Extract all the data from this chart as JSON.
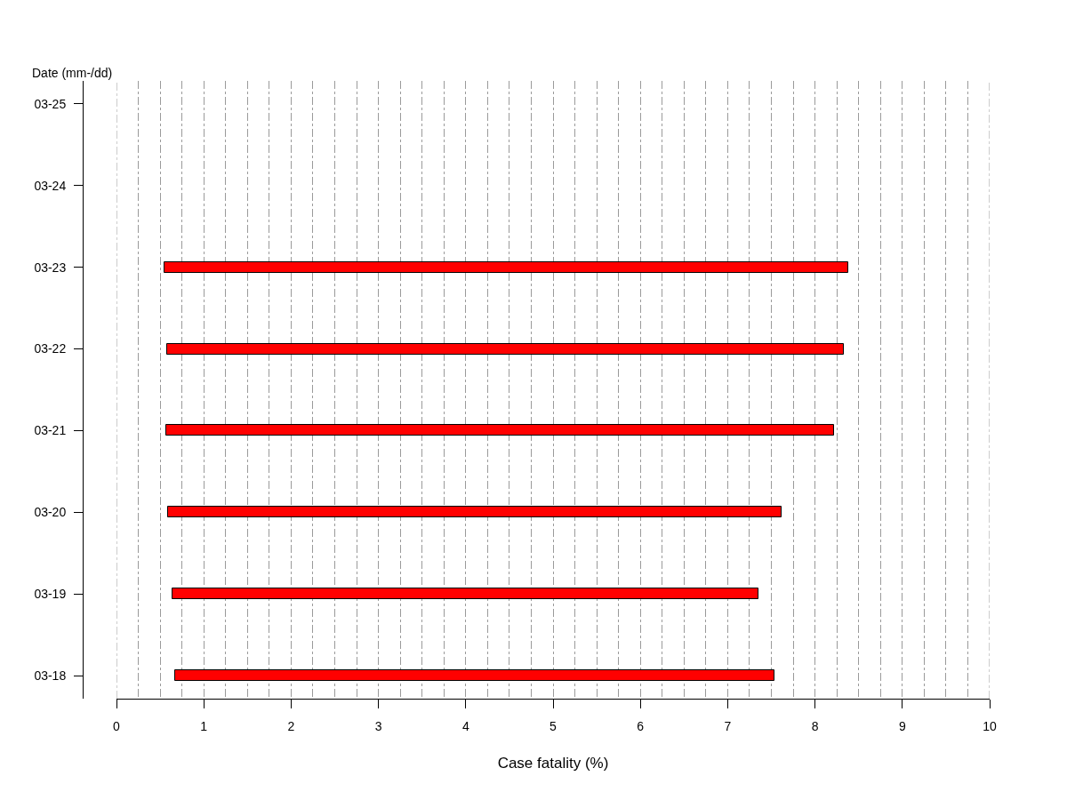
{
  "chart_data": {
    "type": "bar",
    "orientation": "horizontal",
    "categories": [
      "03-25",
      "03-24",
      "03-23",
      "03-22",
      "03-21",
      "03-20",
      "03-19",
      "03-18"
    ],
    "base": [
      null,
      null,
      0.55,
      0.58,
      0.57,
      0.59,
      0.64,
      0.67
    ],
    "values": [
      null,
      null,
      7.83,
      7.75,
      7.65,
      7.03,
      6.71,
      6.87
    ],
    "color": "#ff0000",
    "xlabel": "Case fatality (%)",
    "ylabel": "Date (mm-/dd)",
    "xlim": [
      0,
      10
    ],
    "xticks": [
      0,
      {
        "value": 0.25,
        "label": null
      },
      {
        "value": 0.5,
        "label": null
      },
      {
        "value": 0.75,
        "label": null
      },
      1,
      {
        "value": 1.25,
        "label": null
      },
      {
        "value": 1.5,
        "label": null
      },
      {
        "value": 1.75,
        "label": null
      },
      2,
      {
        "value": 2.25,
        "label": null
      },
      {
        "value": 2.5,
        "label": null
      },
      {
        "value": 2.75,
        "label": null
      },
      3,
      {
        "value": 3.25,
        "label": null
      },
      {
        "value": 3.5,
        "label": null
      },
      {
        "value": 3.75,
        "label": null
      },
      4,
      {
        "value": 4.25,
        "label": null
      },
      {
        "value": 4.5,
        "label": null
      },
      {
        "value": 4.75,
        "label": null
      },
      5,
      {
        "value": 5.25,
        "label": null
      },
      {
        "value": 5.5,
        "label": null
      },
      {
        "value": 5.75,
        "label": null
      },
      6,
      {
        "value": 6.25,
        "label": null
      },
      {
        "value": 6.5,
        "label": null
      },
      {
        "value": 6.75,
        "label": null
      },
      7,
      {
        "value": 7.25,
        "label": null
      },
      {
        "value": 7.5,
        "label": null
      },
      {
        "value": 7.75,
        "label": null
      },
      8,
      {
        "value": 8.25,
        "label": null
      },
      {
        "value": 8.5,
        "label": null
      },
      {
        "value": 8.75,
        "label": null
      },
      9,
      {
        "value": 9.25,
        "label": null
      },
      {
        "value": 9.5,
        "label": null
      },
      {
        "value": 9.75,
        "label": null
      },
      10
    ],
    "grid": "x"
  }
}
